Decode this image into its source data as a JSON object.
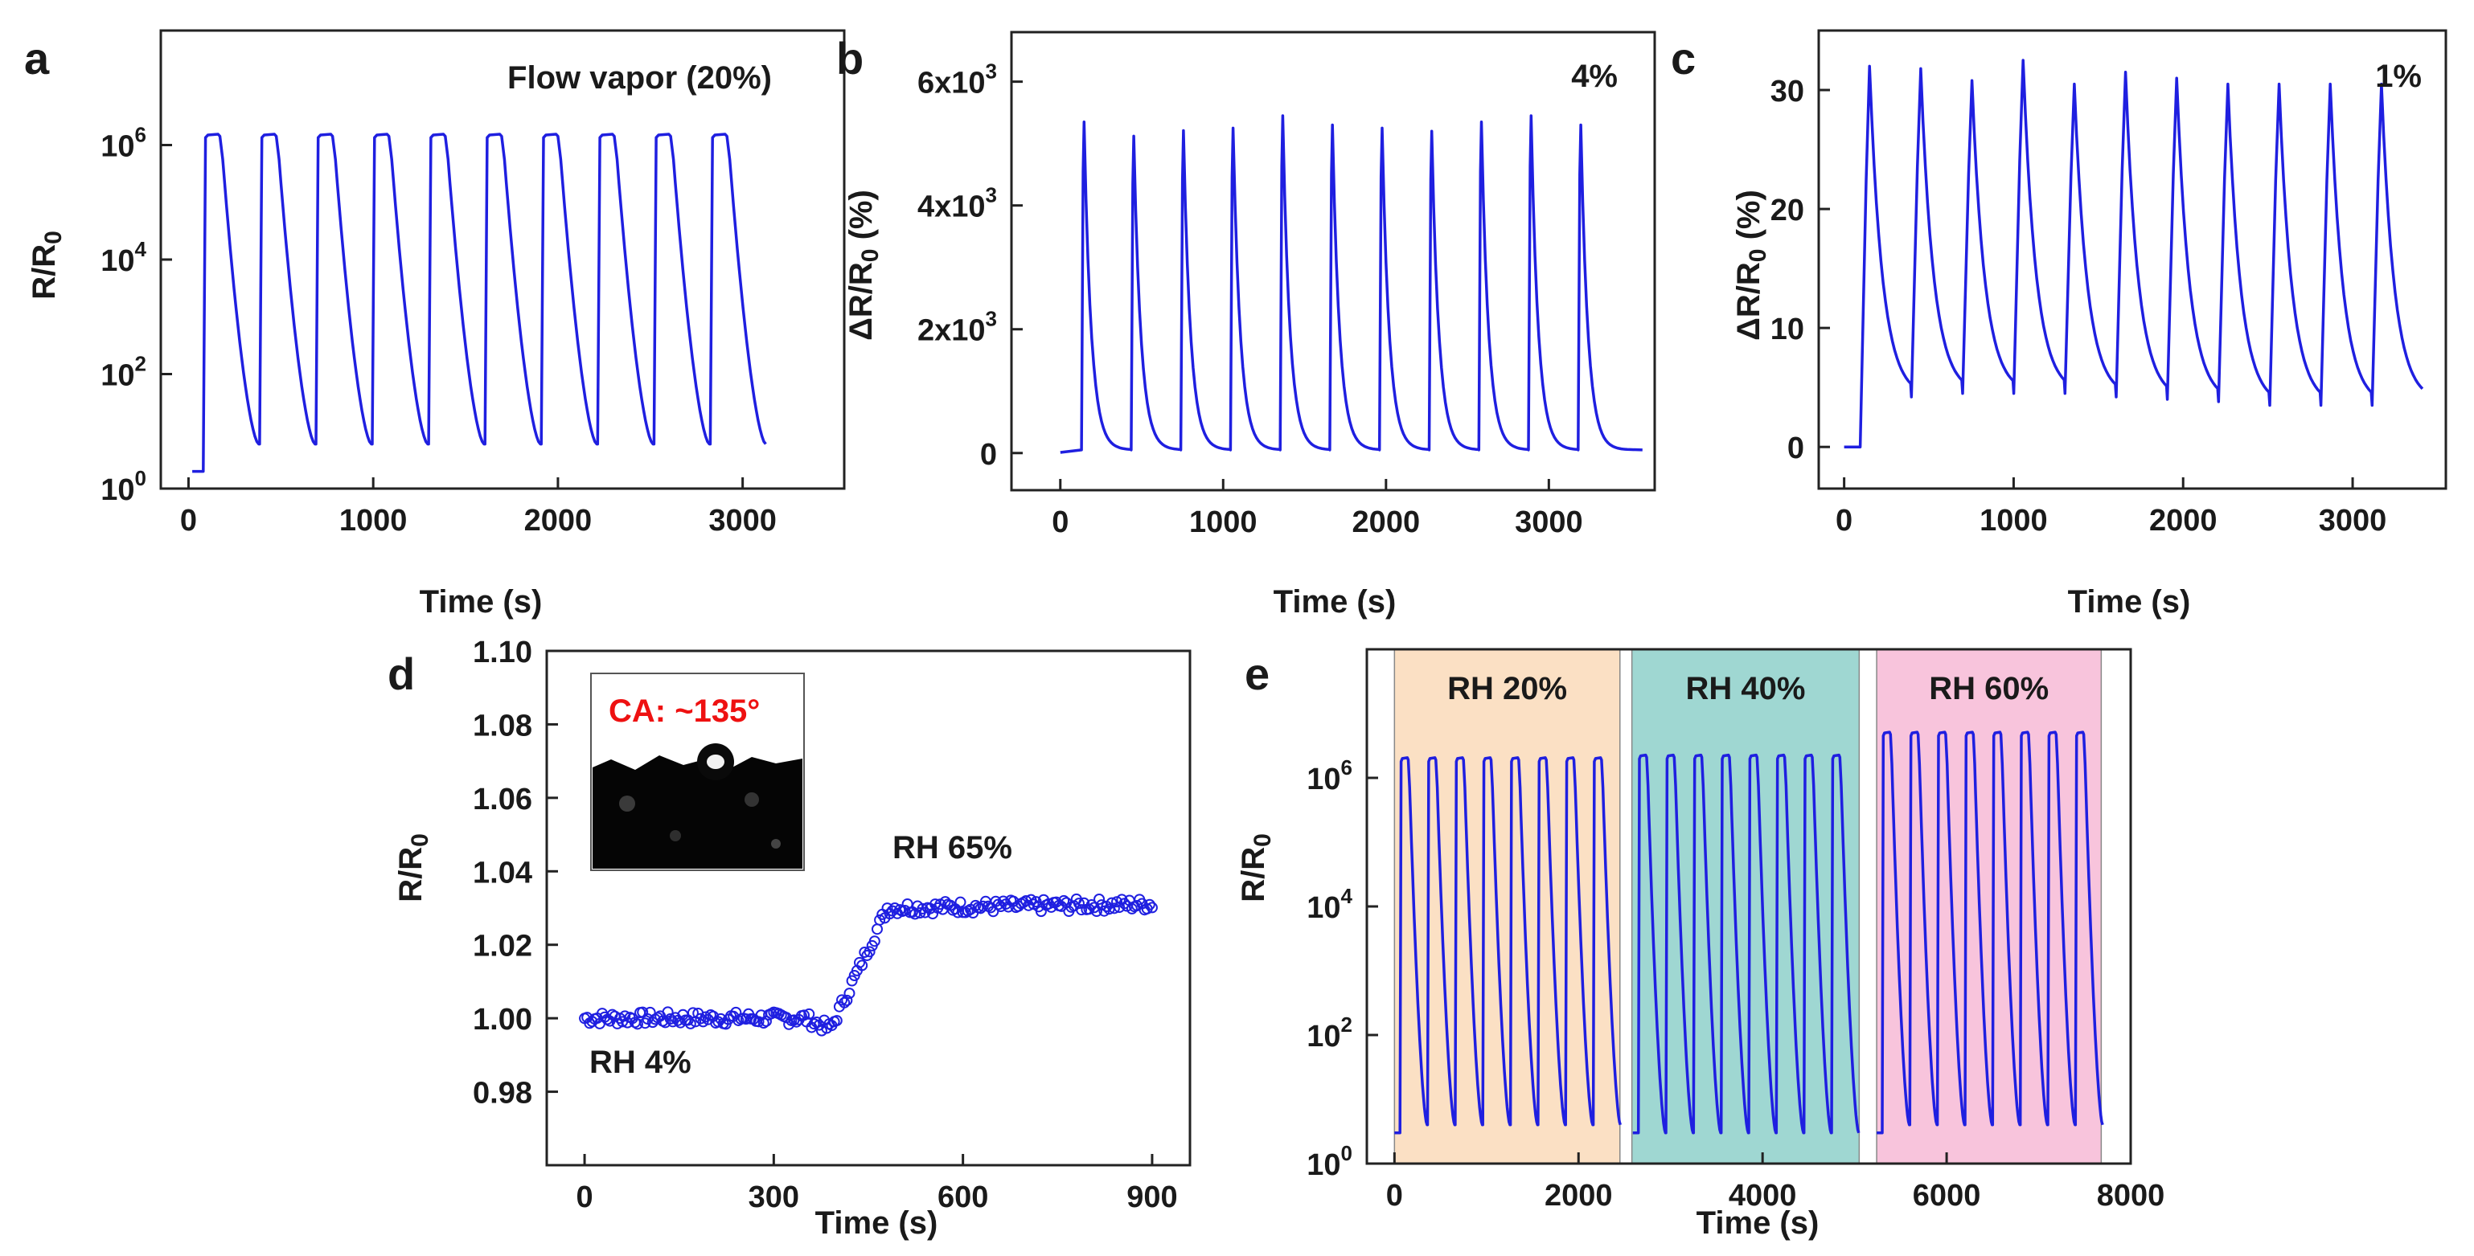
{
  "colors": {
    "series": "#1f1fe0",
    "ca_label": "#ee1111",
    "rh20_bg": "#fbe0c4",
    "rh40_bg": "#9fd7d2",
    "rh60_bg": "#f8c4dc"
  },
  "chart_data": [
    {
      "id": "a",
      "type": "line",
      "panel_label": "a",
      "title": "",
      "annotation": "Flow vapor (20%)",
      "xlabel": "Time (s)",
      "ylabel": "R/R0",
      "yscale": "log",
      "xlim": [
        -150,
        3550
      ],
      "ylim": [
        1,
        100000000
      ],
      "xticks": [
        0,
        1000,
        2000,
        3000
      ],
      "xtick_labels": [
        "0",
        "1000",
        "2000",
        "3000"
      ],
      "yticks": [
        1,
        100,
        10000,
        1000000
      ],
      "ytick_labels": [
        {
          "base": "10",
          "exp": "0"
        },
        {
          "base": "10",
          "exp": "2"
        },
        {
          "base": "10",
          "exp": "4"
        },
        {
          "base": "10",
          "exp": "6"
        }
      ],
      "series": [
        {
          "name": "R/R0",
          "kind": "square-pulses",
          "baseline": 2,
          "start": 80,
          "period": 305,
          "cycles": 10,
          "high": 1500000,
          "recovery_min": 6
        }
      ]
    },
    {
      "id": "b",
      "type": "line",
      "panel_label": "b",
      "annotation": "4%",
      "xlabel": "Time (s)",
      "ylabel": "ΔR/R0 (%)",
      "yscale": "linear",
      "xlim": [
        -300,
        3650
      ],
      "ylim": [
        -600,
        6800
      ],
      "xticks": [
        0,
        1000,
        2000,
        3000
      ],
      "xtick_labels": [
        "0",
        "1000",
        "2000",
        "3000"
      ],
      "yticks": [
        0,
        2000,
        4000,
        6000
      ],
      "ytick_labels": [
        {
          "base": "0",
          "exp": ""
        },
        {
          "base": "2x10",
          "exp": "3"
        },
        {
          "base": "4x10",
          "exp": "3"
        },
        {
          "base": "6x10",
          "exp": "3"
        }
      ],
      "series": [
        {
          "name": "ΔR/R0",
          "kind": "spikes",
          "baseline": 10,
          "start": 140,
          "period": 305,
          "cycles": 11,
          "peaks": [
            5350,
            5120,
            5210,
            5250,
            5450,
            5300,
            5250,
            5200,
            5350,
            5450,
            5300
          ],
          "recovery_min": 50
        }
      ]
    },
    {
      "id": "c",
      "type": "line",
      "panel_label": "c",
      "annotation": "1%",
      "xlabel": "Time (s)",
      "ylabel": "ΔR/R0 (%)",
      "yscale": "linear",
      "xlim": [
        -150,
        3550
      ],
      "ylim": [
        -3.5,
        35
      ],
      "xticks": [
        0,
        1000,
        2000,
        3000
      ],
      "xtick_labels": [
        "0",
        "1000",
        "2000",
        "3000"
      ],
      "yticks": [
        0,
        10,
        20,
        30
      ],
      "ytick_labels": [
        {
          "base": "0",
          "exp": ""
        },
        {
          "base": "10",
          "exp": ""
        },
        {
          "base": "20",
          "exp": ""
        },
        {
          "base": "30",
          "exp": ""
        }
      ],
      "series": [
        {
          "name": "ΔR/R0",
          "kind": "sawtooth",
          "baseline": 0,
          "start": 150,
          "period": 302,
          "cycles": 11,
          "peaks": [
            32,
            31.8,
            30.8,
            32.5,
            30.5,
            31.5,
            31,
            30.5,
            30.5,
            30.5,
            30.5
          ],
          "troughs": [
            4.2,
            4.5,
            4.5,
            4.5,
            4.2,
            4,
            3.8,
            3.5,
            3.5,
            3.5,
            3.8
          ]
        }
      ]
    },
    {
      "id": "d",
      "type": "scatter",
      "panel_label": "d",
      "xlabel": "Time (s)",
      "ylabel": "R/R0",
      "yscale": "linear",
      "xlim": [
        -60,
        960
      ],
      "ylim": [
        0.96,
        1.1
      ],
      "xticks": [
        0,
        300,
        600,
        900
      ],
      "xtick_labels": [
        "0",
        "300",
        "600",
        "900"
      ],
      "yticks": [
        0.98,
        1.0,
        1.02,
        1.04,
        1.06,
        1.08,
        1.1
      ],
      "ytick_labels": [
        {
          "base": "0.98",
          "exp": ""
        },
        {
          "base": "1.00",
          "exp": ""
        },
        {
          "base": "1.02",
          "exp": ""
        },
        {
          "base": "1.04",
          "exp": ""
        },
        {
          "base": "1.06",
          "exp": ""
        },
        {
          "base": "1.08",
          "exp": ""
        },
        {
          "base": "1.10",
          "exp": ""
        }
      ],
      "annotations": {
        "rh_low": "RH 4%",
        "rh_high": "RH 65%",
        "inset_label": "CA: ~135°"
      },
      "series": [
        {
          "name": "R/R0",
          "kind": "step",
          "points_every": 4,
          "start": 0,
          "end": 900,
          "low": 1.0,
          "step_start": 390,
          "step_end": 480,
          "high": 1.03,
          "drift_end": 1.031
        }
      ]
    },
    {
      "id": "e",
      "type": "line",
      "panel_label": "e",
      "xlabel": "Time (s)",
      "ylabel": "R/R0",
      "yscale": "log",
      "xlim": [
        -300,
        8000
      ],
      "ylim": [
        1,
        100000000
      ],
      "xticks": [
        0,
        2000,
        4000,
        6000,
        8000
      ],
      "xtick_labels": [
        "0",
        "2000",
        "4000",
        "6000",
        "8000"
      ],
      "yticks": [
        1,
        100,
        10000,
        1000000
      ],
      "ytick_labels": [
        {
          "base": "10",
          "exp": "0"
        },
        {
          "base": "10",
          "exp": "2"
        },
        {
          "base": "10",
          "exp": "4"
        },
        {
          "base": "10",
          "exp": "6"
        }
      ],
      "regions": [
        {
          "label": "RH 20%",
          "x0": 0,
          "x1": 2450,
          "color": "#fbe0c4"
        },
        {
          "label": "RH 40%",
          "x0": 2580,
          "x1": 5050,
          "color": "#9fd7d2"
        },
        {
          "label": "RH 60%",
          "x0": 5240,
          "x1": 7680,
          "color": "#f8c4dc"
        }
      ],
      "series": [
        {
          "name": "RH 20%",
          "kind": "square-pulses",
          "baseline": 3,
          "start": 60,
          "period": 300,
          "cycles": 8,
          "high": 2000000,
          "recovery_min": 4
        },
        {
          "name": "RH 40%",
          "kind": "square-pulses",
          "baseline": 3,
          "start": 2650,
          "period": 300,
          "cycles": 8,
          "high": 2200000,
          "recovery_min": 3
        },
        {
          "name": "RH 60%",
          "kind": "square-pulses",
          "baseline": 3,
          "start": 5300,
          "period": 300,
          "cycles": 8,
          "high": 5000000,
          "recovery_min": 4
        }
      ]
    }
  ]
}
